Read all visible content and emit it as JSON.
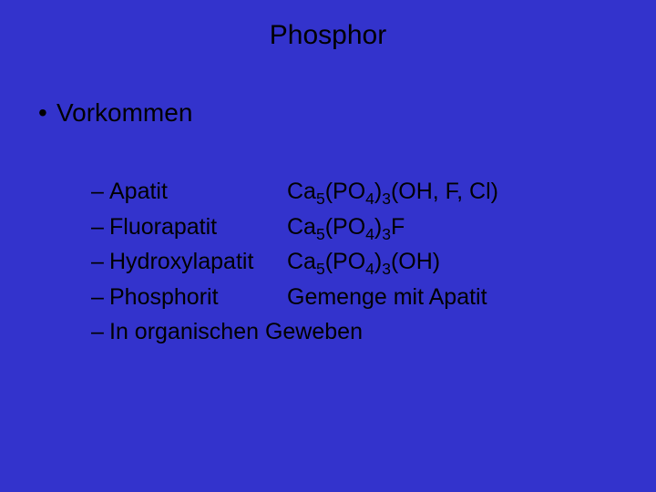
{
  "background_color": "#3333cc",
  "text_color": "#000000",
  "title": "Phosphor",
  "title_fontsize": 30,
  "main_bullet_label": "Vorkommen",
  "main_bullet_fontsize": 28,
  "bullet_char": "•",
  "dash_char": "–",
  "sublist_fontsize": 25,
  "items": [
    {
      "name": "Apatit",
      "formula_html": "Ca<sub>5</sub>(PO<sub>4</sub>)<sub>3</sub>(OH, F, Cl)"
    },
    {
      "name": "Fluorapatit",
      "formula_html": "Ca<sub>5</sub>(PO<sub>4</sub>)<sub>3</sub>F"
    },
    {
      "name": "Hydroxylapatit",
      "formula_html": "Ca<sub>5</sub>(PO<sub>4</sub>)<sub>3</sub>(OH)"
    },
    {
      "name": "Phosphorit",
      "formula_html": "Gemenge mit Apatit"
    },
    {
      "name": "In organischen Geweben",
      "formula_html": ""
    }
  ]
}
